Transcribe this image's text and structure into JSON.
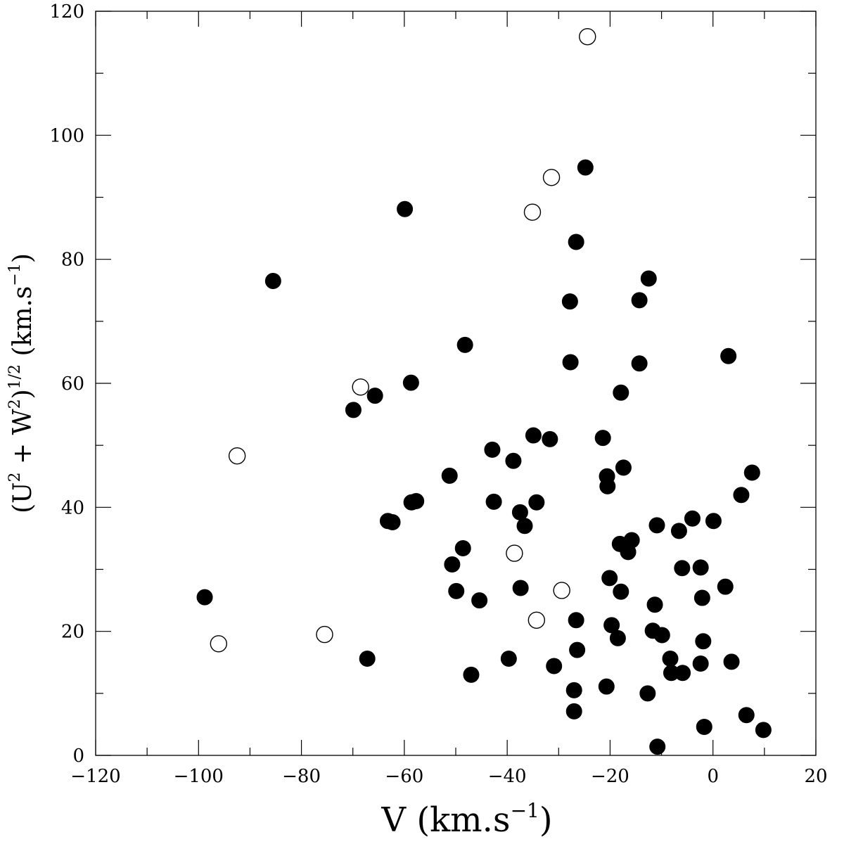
{
  "chart_data": {
    "type": "scatter",
    "title": "",
    "xlabel": "V  (km.s",
    "xlabel_sup": "−1",
    "xlabel_close": ")",
    "ylabel_parts": [
      "(U",
      "2",
      "  +  W",
      "2",
      ")",
      "1/2",
      "  (km.s",
      "−1",
      ")"
    ],
    "xlim": [
      -120,
      20
    ],
    "ylim": [
      0,
      120
    ],
    "x_ticks": [
      -120,
      -100,
      -80,
      -60,
      -40,
      -20,
      0,
      20
    ],
    "x_tick_labels": [
      "−120",
      "−100",
      "−80",
      "−60",
      "−40",
      "−20",
      "0",
      "20"
    ],
    "y_ticks": [
      0,
      20,
      40,
      60,
      80,
      100,
      120
    ],
    "y_tick_labels": [
      "0",
      "20",
      "40",
      "60",
      "80",
      "100",
      "120"
    ],
    "x_minor_step": 10,
    "y_minor_step": 10,
    "grid": false,
    "legend": "none",
    "series": [
      {
        "marker": "filled-circle",
        "color": "#000000",
        "points": [
          [
            -24.8,
            94.8
          ],
          [
            -26.6,
            82.8
          ],
          [
            -59.9,
            88.1
          ],
          [
            -85.5,
            76.5
          ],
          [
            -27.8,
            73.2
          ],
          [
            -12.5,
            76.9
          ],
          [
            -14.3,
            73.4
          ],
          [
            -48.2,
            66.2
          ],
          [
            -27.7,
            63.4
          ],
          [
            -14.3,
            63.2
          ],
          [
            3.0,
            64.4
          ],
          [
            -17.9,
            58.5
          ],
          [
            -58.7,
            60.1
          ],
          [
            -69.9,
            55.7
          ],
          [
            -65.7,
            58.0
          ],
          [
            -34.9,
            51.6
          ],
          [
            -31.7,
            51.0
          ],
          [
            -21.4,
            51.2
          ],
          [
            -42.9,
            49.3
          ],
          [
            -38.8,
            47.5
          ],
          [
            -51.2,
            45.1
          ],
          [
            -20.6,
            45.0
          ],
          [
            -17.4,
            46.4
          ],
          [
            -20.5,
            43.4
          ],
          [
            7.6,
            45.6
          ],
          [
            5.5,
            42.0
          ],
          [
            -42.6,
            40.9
          ],
          [
            -58.6,
            40.8
          ],
          [
            -57.7,
            41.0
          ],
          [
            -34.3,
            40.8
          ],
          [
            -37.5,
            39.2
          ],
          [
            -36.6,
            37.0
          ],
          [
            -63.2,
            37.8
          ],
          [
            -62.3,
            37.6
          ],
          [
            -10.9,
            37.1
          ],
          [
            -6.6,
            36.2
          ],
          [
            -4.0,
            38.2
          ],
          [
            0.1,
            37.8
          ],
          [
            -15.8,
            34.7
          ],
          [
            -18.1,
            34.1
          ],
          [
            -16.5,
            32.8
          ],
          [
            -48.6,
            33.4
          ],
          [
            -50.7,
            30.8
          ],
          [
            -6.0,
            30.2
          ],
          [
            -2.4,
            30.3
          ],
          [
            -20.1,
            28.6
          ],
          [
            2.4,
            27.2
          ],
          [
            -37.4,
            27.0
          ],
          [
            -49.9,
            26.5
          ],
          [
            -17.9,
            26.4
          ],
          [
            -98.8,
            25.5
          ],
          [
            -45.4,
            25.0
          ],
          [
            -2.1,
            25.4
          ],
          [
            -11.3,
            24.3
          ],
          [
            -26.6,
            21.8
          ],
          [
            -19.7,
            21.0
          ],
          [
            -11.7,
            20.1
          ],
          [
            -9.9,
            19.4
          ],
          [
            -18.5,
            18.9
          ],
          [
            -1.9,
            18.4
          ],
          [
            -26.4,
            17.0
          ],
          [
            -67.2,
            15.6
          ],
          [
            -39.7,
            15.6
          ],
          [
            -8.3,
            15.6
          ],
          [
            -30.9,
            14.4
          ],
          [
            -2.4,
            14.8
          ],
          [
            3.6,
            15.1
          ],
          [
            -8.1,
            13.3
          ],
          [
            -5.9,
            13.3
          ],
          [
            -47.0,
            13.0
          ],
          [
            -20.7,
            11.1
          ],
          [
            -27.0,
            10.5
          ],
          [
            -12.7,
            10.0
          ],
          [
            -27.0,
            7.1
          ],
          [
            6.5,
            6.5
          ],
          [
            -1.7,
            4.6
          ],
          [
            9.8,
            4.1
          ],
          [
            -10.8,
            1.4
          ]
        ]
      },
      {
        "marker": "open-circle",
        "color": "#000000",
        "points": [
          [
            -24.4,
            115.9
          ],
          [
            -31.4,
            93.2
          ],
          [
            -35.1,
            87.6
          ],
          [
            -68.5,
            59.4
          ],
          [
            -92.5,
            48.3
          ],
          [
            -38.6,
            32.6
          ],
          [
            -29.4,
            26.6
          ],
          [
            -34.3,
            21.8
          ],
          [
            -96.1,
            18.0
          ],
          [
            -75.5,
            19.5
          ]
        ]
      }
    ]
  }
}
